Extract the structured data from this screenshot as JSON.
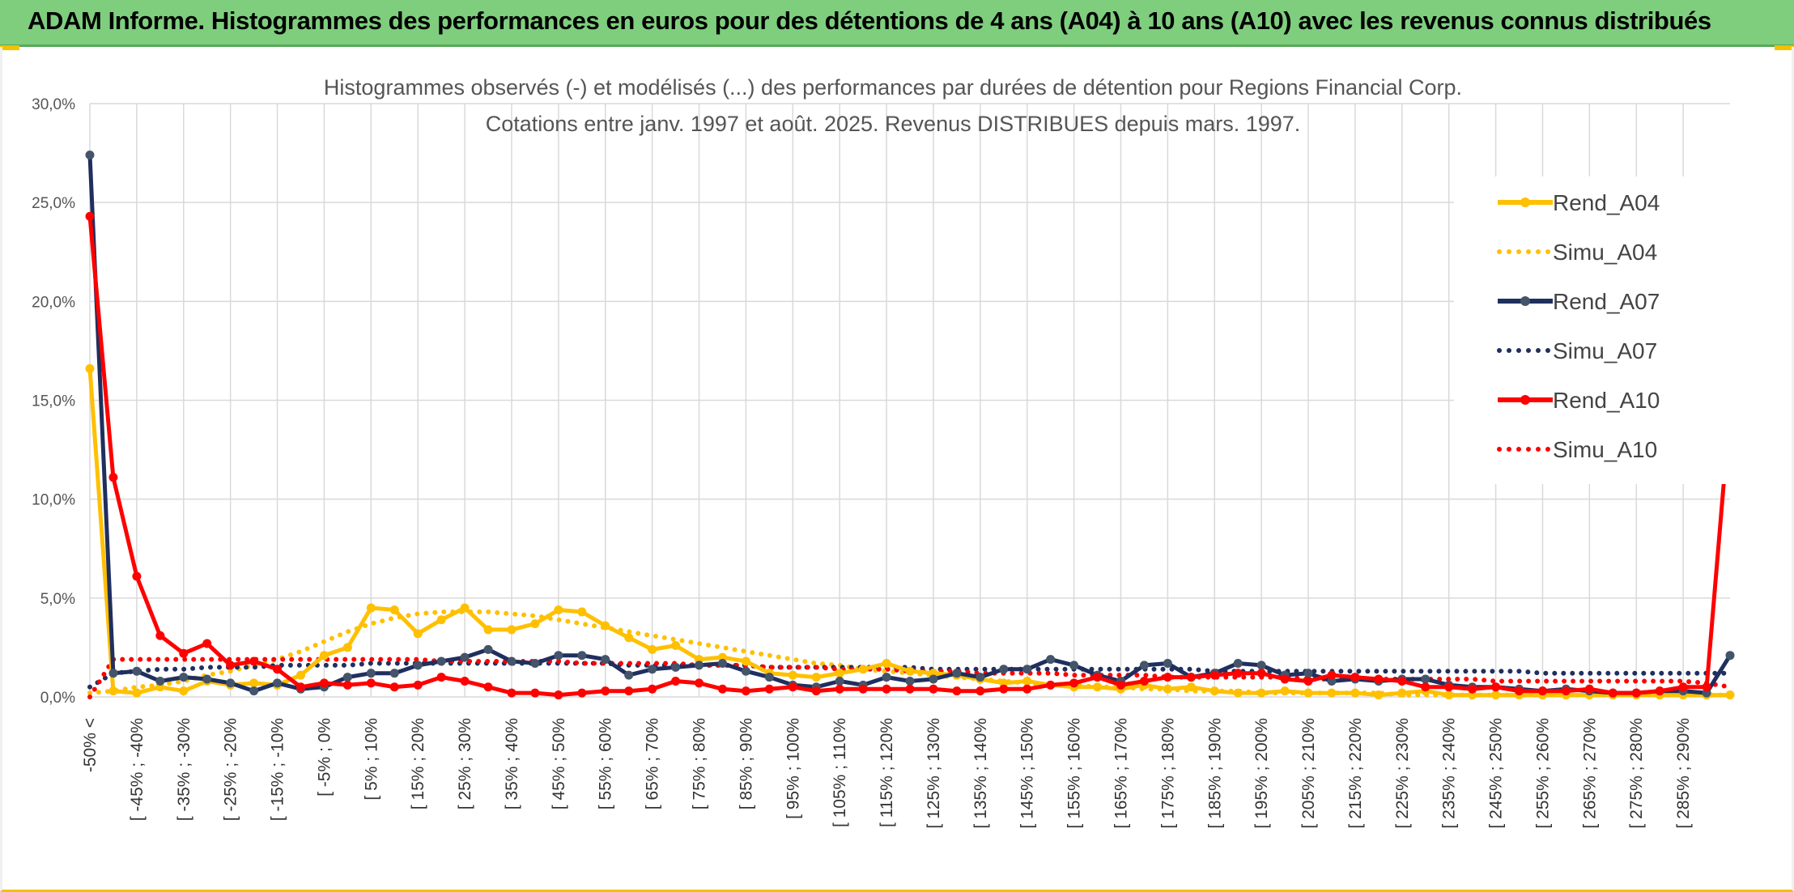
{
  "banner": {
    "title": "ADAM Informe. Histogrammes des performances en euros pour des détentions de 4 ans (A04) à 10 ans (A10) avec les revenus connus distribués"
  },
  "chart_data": {
    "type": "line",
    "title_line1": "Histogrammes observés (-) et modélisés (...) des performances par durées de détention pour Regions Financial Corp.",
    "title_line2": "Cotations entre janv. 1997 et août. 2025. Revenus DISTRIBUES depuis mars. 1997.",
    "ylim": [
      0,
      30
    ],
    "yticks": [
      "0,0%",
      "5,0%",
      "10,0%",
      "15,0%",
      "20,0%",
      "25,0%",
      "30,0%"
    ],
    "grid": true,
    "legend_position": "right",
    "x_labels": [
      "-50% <",
      "[ -45% ; -40%",
      "[ -35% ; -30%",
      "[ -25% ; -20%",
      "[ -15% ; -10%",
      "[ -5% ; 0%",
      "[ 5% ; 10%",
      "[ 15% ; 20%",
      "[ 25% ; 30%",
      "[ 35% ; 40%",
      "[ 45% ; 50%",
      "[ 55% ; 60%",
      "[ 65% ; 70%",
      "[ 75% ; 80%",
      "[ 85% ; 90%",
      "[ 95% ; 100%",
      "[ 105% ; 110%",
      "[ 115% ; 120%",
      "[ 125% ; 130%",
      "[ 135% ; 140%",
      "[ 145% ; 150%",
      "[ 155% ; 160%",
      "[ 165% ; 170%",
      "[ 175% ; 180%",
      "[ 185% ; 190%",
      "[ 195% ; 200%",
      "[ 205% ; 210%",
      "[ 215% ; 220%",
      "[ 225% ; 230%",
      "[ 235% ; 240%",
      "[ 245% ; 250%",
      "[ 255% ; 260%",
      "[ 265% ; 270%",
      "[ 275% ; 280%",
      "[ 285% ; 290%"
    ],
    "series": [
      {
        "name": "Rend_A04",
        "style": "solid",
        "color": "#ffc000",
        "values": [
          16.6,
          0.3,
          0.2,
          0.5,
          0.3,
          0.8,
          0.6,
          0.7,
          0.6,
          1.1,
          2.1,
          2.5,
          4.5,
          4.4,
          3.2,
          3.9,
          4.5,
          3.4,
          3.4,
          3.7,
          4.4,
          4.3,
          3.6,
          3.0,
          2.4,
          2.6,
          1.9,
          2.0,
          1.8,
          1.2,
          1.1,
          1.0,
          1.2,
          1.4,
          1.7,
          1.3,
          1.2,
          1.1,
          0.9,
          0.7,
          0.8,
          0.6,
          0.5,
          0.5,
          0.4,
          0.6,
          0.4,
          0.5,
          0.3,
          0.2,
          0.2,
          0.3,
          0.2,
          0.2,
          0.2,
          0.1,
          0.2,
          0.3,
          0.1,
          0.1,
          0.1,
          0.1,
          0.1,
          0.1,
          0.1,
          0.1,
          0.1,
          0.1,
          0.1,
          0.1,
          0.1
        ]
      },
      {
        "name": "Simu_A04",
        "style": "dotted",
        "color": "#ffc000",
        "values": [
          0.2,
          0.3,
          0.5,
          0.6,
          0.8,
          1.1,
          1.3,
          1.6,
          1.9,
          2.3,
          2.8,
          3.3,
          3.7,
          4.0,
          4.2,
          4.3,
          4.3,
          4.3,
          4.2,
          4.1,
          3.9,
          3.7,
          3.5,
          3.3,
          3.1,
          2.9,
          2.7,
          2.5,
          2.3,
          2.1,
          1.9,
          1.7,
          1.6,
          1.4,
          1.3,
          1.2,
          1.1,
          1.0,
          0.9,
          0.8,
          0.7,
          0.6,
          0.6,
          0.5,
          0.5,
          0.4,
          0.4,
          0.3,
          0.3,
          0.3,
          0.2,
          0.2,
          0.2,
          0.2,
          0.2,
          0.2,
          0.1,
          0.1,
          0.1,
          0.1,
          0.1,
          0.1,
          0.1,
          0.1,
          0.1,
          0.1,
          0.1,
          0.1,
          0.1,
          0.1,
          0.1
        ]
      },
      {
        "name": "Rend_A07",
        "style": "solid",
        "color": "#1f2f5e",
        "values": [
          27.4,
          1.2,
          1.3,
          0.8,
          1.0,
          0.9,
          0.7,
          0.3,
          0.7,
          0.4,
          0.5,
          1.0,
          1.2,
          1.2,
          1.6,
          1.8,
          2.0,
          2.4,
          1.8,
          1.7,
          2.1,
          2.1,
          1.9,
          1.1,
          1.4,
          1.5,
          1.6,
          1.7,
          1.3,
          1.0,
          0.6,
          0.5,
          0.8,
          0.6,
          1.0,
          0.8,
          0.9,
          1.2,
          1.0,
          1.4,
          1.4,
          1.9,
          1.6,
          1.1,
          0.8,
          1.6,
          1.7,
          1.0,
          1.2,
          1.7,
          1.6,
          1.1,
          1.2,
          0.8,
          0.9,
          0.8,
          0.9,
          0.9,
          0.6,
          0.5,
          0.5,
          0.4,
          0.3,
          0.4,
          0.3,
          0.2,
          0.2,
          0.3,
          0.3,
          0.2,
          2.1
        ]
      },
      {
        "name": "Simu_A07",
        "style": "dotted",
        "color": "#1f2f5e",
        "values": [
          0.5,
          1.2,
          1.3,
          1.4,
          1.4,
          1.5,
          1.5,
          1.5,
          1.6,
          1.6,
          1.6,
          1.6,
          1.7,
          1.7,
          1.7,
          1.7,
          1.7,
          1.7,
          1.7,
          1.7,
          1.7,
          1.7,
          1.7,
          1.6,
          1.6,
          1.6,
          1.6,
          1.6,
          1.6,
          1.5,
          1.5,
          1.5,
          1.5,
          1.5,
          1.5,
          1.5,
          1.4,
          1.4,
          1.4,
          1.4,
          1.4,
          1.4,
          1.4,
          1.4,
          1.4,
          1.4,
          1.4,
          1.4,
          1.3,
          1.3,
          1.3,
          1.3,
          1.3,
          1.3,
          1.3,
          1.3,
          1.3,
          1.3,
          1.3,
          1.3,
          1.3,
          1.3,
          1.2,
          1.2,
          1.2,
          1.2,
          1.2,
          1.2,
          1.2,
          1.2,
          1.2
        ]
      },
      {
        "name": "Rend_A10",
        "style": "solid",
        "color": "#ff0000",
        "values": [
          24.3,
          11.1,
          6.1,
          3.1,
          2.2,
          2.7,
          1.6,
          1.8,
          1.4,
          0.5,
          0.7,
          0.6,
          0.7,
          0.5,
          0.6,
          1.0,
          0.8,
          0.5,
          0.2,
          0.2,
          0.1,
          0.2,
          0.3,
          0.3,
          0.4,
          0.8,
          0.7,
          0.4,
          0.3,
          0.4,
          0.5,
          0.3,
          0.4,
          0.4,
          0.4,
          0.4,
          0.4,
          0.3,
          0.3,
          0.4,
          0.4,
          0.6,
          0.7,
          1.0,
          0.6,
          0.8,
          1.0,
          1.0,
          1.1,
          1.2,
          1.2,
          0.9,
          0.8,
          1.1,
          1.0,
          0.9,
          0.8,
          0.5,
          0.5,
          0.4,
          0.5,
          0.3,
          0.3,
          0.3,
          0.4,
          0.2,
          0.2,
          0.3,
          0.5,
          0.5,
          14.6
        ]
      },
      {
        "name": "Simu_A10",
        "style": "dotted",
        "color": "#ff0000",
        "values": [
          0.0,
          1.9,
          1.9,
          1.9,
          1.9,
          1.9,
          1.9,
          1.9,
          1.9,
          1.9,
          1.9,
          1.9,
          1.9,
          1.9,
          1.9,
          1.8,
          1.8,
          1.8,
          1.8,
          1.8,
          1.8,
          1.7,
          1.7,
          1.7,
          1.7,
          1.7,
          1.6,
          1.6,
          1.6,
          1.5,
          1.5,
          1.5,
          1.4,
          1.4,
          1.4,
          1.3,
          1.3,
          1.3,
          1.2,
          1.2,
          1.2,
          1.2,
          1.1,
          1.1,
          1.1,
          1.1,
          1.0,
          1.0,
          1.0,
          1.0,
          1.0,
          1.0,
          0.9,
          0.9,
          0.9,
          0.9,
          0.9,
          0.9,
          0.9,
          0.9,
          0.8,
          0.8,
          0.8,
          0.8,
          0.8,
          0.8,
          0.8,
          0.8,
          0.8,
          0.7,
          0.5
        ]
      }
    ]
  }
}
